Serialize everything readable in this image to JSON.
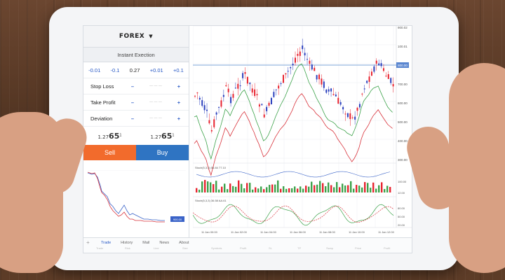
{
  "panel": {
    "symbol": "FOREX",
    "subtitle": "Instant Exection",
    "quotes": [
      "-0.01",
      "-0.1",
      "0.27",
      "+0.01",
      "+0.1"
    ],
    "params": [
      {
        "label": "Stop Loss",
        "minus": "–",
        "plus": "+"
      },
      {
        "label": "Take Profit",
        "minus": "–",
        "plus": "+"
      },
      {
        "label": "Deviation",
        "minus": "–",
        "plus": "+"
      }
    ],
    "sell_price": {
      "prefix": "1.27",
      "big": "65",
      "sup": "1"
    },
    "buy_price": {
      "prefix": "1.27",
      "big": "65",
      "sup": "1"
    },
    "sell_label": "Sell",
    "buy_label": "Buy"
  },
  "chart_labels": {
    "y_axis": [
      "900.02",
      "100.01",
      "800.00",
      "700.00",
      "600.00",
      "500.00",
      "400.00",
      "300.00"
    ],
    "highlight": "800.00",
    "indicator1": "Stoch(5,3,3) 55.84 77.10",
    "indicator1_axis": [
      "100.00",
      "12.00"
    ],
    "indicator2": "Stoch(5,3,3) 36.58 AA.61",
    "indicator2_axis": [
      "80.00",
      "50.00",
      "20.00"
    ],
    "x_axis": [
      "11 Jan 00:00",
      "11 Jan 02:00",
      "11 Jan 04:00",
      "11 Jan 06:00",
      "11 Jan 08:00",
      "11 Jan 10:00",
      "11 Jan 12:00"
    ],
    "mini_tag": "900.00"
  },
  "bottom": {
    "tabs": [
      "Trade",
      "History",
      "Mail",
      "News",
      "About"
    ],
    "funcs": [
      "Trade",
      "Risk",
      "Line",
      "Size",
      "Symbols",
      "Profit",
      "SL",
      "TP",
      "Swap",
      "Price",
      "Profit",
      "Comment"
    ]
  },
  "colors": {
    "sell": "#f26b2c",
    "buy": "#2f74c2",
    "up_candle": "#2a3fbd",
    "down_candle": "#e8232f",
    "ma_green": "#3ca24a",
    "ma_red": "#d8323b",
    "h_line": "#7fa7d9"
  }
}
